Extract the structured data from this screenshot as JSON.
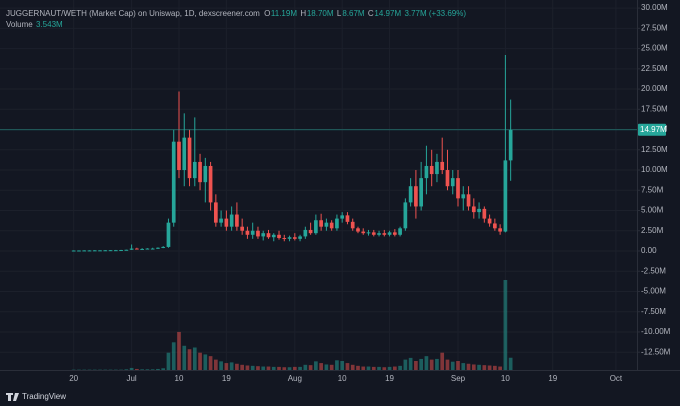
{
  "chart_data": {
    "type": "candlestick",
    "title": "JUGGERNAUT/WETH (Market Cap) on Uniswap, 1D, dexscreener.com",
    "ohlc_legend": [
      {
        "key": "O",
        "text": "11.19M"
      },
      {
        "key": "H",
        "text": "18.70M"
      },
      {
        "key": "L",
        "text": "8.67M"
      },
      {
        "key": "C",
        "text": "14.97M"
      }
    ],
    "change": "3.77M (+33.69%)",
    "volume_name": "Volume",
    "volume_last": "3.543M",
    "brand": "TradingView",
    "up_color": "#26a69a",
    "down_color": "#ef5350",
    "last_price": {
      "value": 14.97,
      "label": "14.97M"
    },
    "x": [
      "Jun 20",
      "Jun 21",
      "Jun 22",
      "Jun 23",
      "Jun 24",
      "Jun 25",
      "Jun 26",
      "Jun 27",
      "Jun 28",
      "Jun 29",
      "Jun 30",
      "Jul 1",
      "Jul 2",
      "Jul 3",
      "Jul 4",
      "Jul 5",
      "Jul 6",
      "Jul 7",
      "Jul 8",
      "Jul 9",
      "Jul 10",
      "Jul 11",
      "Jul 12",
      "Jul 13",
      "Jul 14",
      "Jul 15",
      "Jul 16",
      "Jul 17",
      "Jul 18",
      "Jul 19",
      "Jul 20",
      "Jul 21",
      "Jul 22",
      "Jul 23",
      "Jul 24",
      "Jul 25",
      "Jul 26",
      "Jul 27",
      "Jul 28",
      "Jul 29",
      "Jul 30",
      "Jul 31",
      "Aug 1",
      "Aug 2",
      "Aug 3",
      "Aug 4",
      "Aug 5",
      "Aug 6",
      "Aug 7",
      "Aug 8",
      "Aug 9",
      "Aug 10",
      "Aug 11",
      "Aug 12",
      "Aug 13",
      "Aug 14",
      "Aug 15",
      "Aug 16",
      "Aug 17",
      "Aug 18",
      "Aug 19",
      "Aug 20",
      "Aug 21",
      "Aug 22",
      "Aug 23",
      "Aug 24",
      "Aug 25",
      "Aug 26",
      "Aug 27",
      "Aug 28",
      "Aug 29",
      "Aug 30",
      "Aug 31",
      "Sep 1",
      "Sep 2",
      "Sep 3",
      "Sep 4",
      "Sep 5",
      "Sep 6",
      "Sep 7",
      "Sep 8",
      "Sep 9",
      "Sep 10",
      "Sep 11"
    ],
    "open": [
      0.05,
      0.06,
      0.06,
      0.07,
      0.07,
      0.08,
      0.08,
      0.09,
      0.1,
      0.1,
      0.12,
      0.15,
      0.3,
      0.25,
      0.25,
      0.3,
      0.3,
      0.4,
      0.5,
      3.5,
      13.5,
      10,
      14,
      9,
      11,
      8.5,
      10.5,
      6,
      3.5,
      4,
      3,
      4.5,
      3,
      2.5,
      2,
      2.5,
      1.8,
      2.2,
      1.7,
      2,
      1.6,
      1.5,
      1.7,
      1.5,
      1.8,
      2.6,
      2.2,
      3.8,
      3,
      3.5,
      2.8,
      4,
      4.4,
      3.6,
      2.8,
      2.4,
      2.2,
      2.3,
      2,
      2.2,
      2,
      2.3,
      2,
      2.8,
      6,
      8,
      5.5,
      9,
      10.5,
      9.5,
      11,
      10,
      8,
      9,
      6.5,
      7,
      5.5,
      4.8,
      5.2,
      4,
      3.4,
      2.8,
      2.4,
      11.19
    ],
    "high": [
      0.08,
      0.08,
      0.09,
      0.09,
      0.1,
      0.1,
      0.11,
      0.12,
      0.13,
      0.14,
      0.16,
      0.8,
      0.4,
      0.35,
      0.35,
      0.4,
      0.45,
      0.6,
      4,
      15,
      19.7,
      17,
      15,
      16.5,
      12,
      11.5,
      11,
      7,
      5,
      5,
      5.5,
      6,
      4,
      3,
      3.5,
      3,
      2.5,
      2.6,
      2.2,
      2.5,
      2,
      1.9,
      2.2,
      2,
      3,
      3.5,
      4.5,
      4.6,
      4,
      3.8,
      4.5,
      4.8,
      4.8,
      4,
      3,
      2.8,
      2.6,
      2.6,
      2.5,
      2.6,
      2.5,
      2.7,
      3,
      6.5,
      9,
      10,
      11,
      13,
      12.5,
      12,
      14,
      12.5,
      10,
      10,
      8,
      8,
      6.5,
      6,
      5.5,
      4.5,
      4,
      3.3,
      24.2,
      18.7
    ],
    "low": [
      0.04,
      0.05,
      0.05,
      0.06,
      0.06,
      0.07,
      0.07,
      0.08,
      0.08,
      0.09,
      0.1,
      0.12,
      0.2,
      0.2,
      0.2,
      0.25,
      0.25,
      0.35,
      0.4,
      3,
      9,
      8,
      8,
      8,
      7.5,
      6,
      5,
      3,
      3,
      2.5,
      2.5,
      2.5,
      2,
      1.5,
      1.5,
      1.5,
      1.3,
      1.5,
      1.2,
      1.4,
      1.2,
      1.2,
      1.3,
      1.2,
      1.5,
      2,
      2,
      2.5,
      2.5,
      2.5,
      2.5,
      3.5,
      3.3,
      2.5,
      2.2,
      2,
      1.9,
      1.8,
      1.8,
      1.8,
      1.8,
      1.8,
      1.8,
      2.5,
      5.5,
      4,
      5,
      7,
      8,
      8.5,
      9.5,
      7.5,
      7,
      5.5,
      5,
      5,
      4,
      4,
      3.5,
      3,
      2.5,
      2,
      2.3,
      8.67
    ],
    "close": [
      0.06,
      0.06,
      0.07,
      0.07,
      0.08,
      0.08,
      0.09,
      0.1,
      0.1,
      0.12,
      0.15,
      0.3,
      0.25,
      0.25,
      0.3,
      0.3,
      0.4,
      0.5,
      3.5,
      13.5,
      10,
      14,
      9,
      11,
      8.5,
      10.5,
      6,
      3.5,
      4,
      3,
      4.5,
      3,
      2.5,
      2,
      2.5,
      1.8,
      2.2,
      1.7,
      2,
      1.6,
      1.5,
      1.7,
      1.5,
      1.8,
      2.6,
      2.2,
      3.8,
      3,
      3.5,
      2.8,
      4,
      4.4,
      3.6,
      2.8,
      2.4,
      2.2,
      2.3,
      2,
      2.2,
      2,
      2.3,
      2,
      2.8,
      6,
      8,
      5.5,
      9,
      10.5,
      9.5,
      11,
      10,
      8,
      9,
      6.5,
      7,
      5.5,
      4.8,
      5.2,
      4,
      3.4,
      2.8,
      2.4,
      11.19,
      14.97
    ],
    "volume": [
      0.1,
      0.1,
      0.1,
      0.1,
      0.1,
      0.1,
      0.1,
      0.1,
      0.1,
      0.1,
      0.2,
      0.6,
      0.3,
      0.2,
      0.2,
      0.2,
      0.3,
      0.5,
      5,
      8,
      11,
      7,
      6,
      6.5,
      5,
      4.5,
      4,
      3,
      2.5,
      2,
      2.2,
      1.8,
      1.5,
      1.3,
      1.2,
      1.1,
      1,
      1,
      0.9,
      0.9,
      0.8,
      0.8,
      0.9,
      0.9,
      1.5,
      1.4,
      2.5,
      2,
      1.6,
      1.5,
      2.8,
      2.6,
      2,
      1.5,
      1.2,
      1,
      1,
      0.9,
      0.9,
      0.8,
      0.9,
      1,
      1.2,
      3,
      3.5,
      2.6,
      3.2,
      4,
      3,
      3.2,
      5,
      3,
      2.4,
      2.6,
      2,
      1.8,
      1.6,
      1.5,
      1.4,
      1.3,
      1.2,
      1,
      26,
      3.543
    ],
    "xlim": [
      "Jun 6",
      "Oct 5"
    ],
    "xticks": [
      {
        "value": "Jun 20",
        "label": "20"
      },
      {
        "value": "Jul 1",
        "label": "Jul"
      },
      {
        "value": "Jul 10",
        "label": "10"
      },
      {
        "value": "Jul 19",
        "label": "19"
      },
      {
        "value": "Aug 1",
        "label": "Aug"
      },
      {
        "value": "Aug 10",
        "label": "10"
      },
      {
        "value": "Aug 19",
        "label": "19"
      },
      {
        "value": "Sep 1",
        "label": "Sep"
      },
      {
        "value": "Sep 10",
        "label": "10"
      },
      {
        "value": "Sep 19",
        "label": "19"
      },
      {
        "value": "Oct 1",
        "label": "Oct"
      }
    ],
    "ylim": [
      -14.7,
      31
    ],
    "yticks": [
      {
        "value": 30,
        "label": "30.00M"
      },
      {
        "value": 27.5,
        "label": "27.50M"
      },
      {
        "value": 25,
        "label": "25.00M"
      },
      {
        "value": 22.5,
        "label": "22.50M"
      },
      {
        "value": 20,
        "label": "20.00M"
      },
      {
        "value": 17.5,
        "label": "17.50M"
      },
      {
        "value": 15,
        "label": "15.00M"
      },
      {
        "value": 12.5,
        "label": "12.50M"
      },
      {
        "value": 10,
        "label": "10.00M"
      },
      {
        "value": 7.5,
        "label": "7.50M"
      },
      {
        "value": 5,
        "label": "5.00M"
      },
      {
        "value": 2.5,
        "label": "2.50M"
      },
      {
        "value": 0,
        "label": "0.00"
      },
      {
        "value": -2.5,
        "label": "-2.50M"
      },
      {
        "value": -5,
        "label": "-5.00M"
      },
      {
        "value": -7.5,
        "label": "-7.50M"
      },
      {
        "value": -10,
        "label": "-10.00M"
      },
      {
        "value": -12.5,
        "label": "-12.50M"
      }
    ],
    "grid": true
  }
}
